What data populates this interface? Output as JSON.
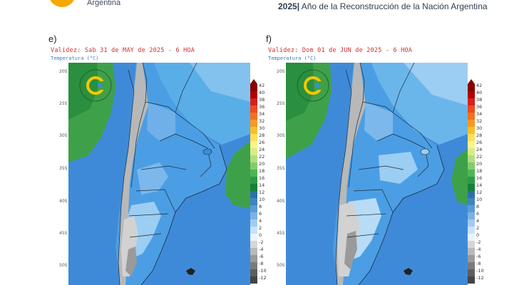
{
  "header": {
    "org_name": "Argentina",
    "year_bold": "2025|",
    "year_title": " Año de la Reconstrucción de la Nación Argentina"
  },
  "panels": [
    {
      "letter": "e)",
      "validity": "Validez: Sab 31 de MAY de 2025 - 6 HOA",
      "variable": "Temperatura (°C)"
    },
    {
      "letter": "f)",
      "validity": "Validez: Dom 01 de JUN de 2025 - 6 HOA",
      "variable": "Temperatura (°C)"
    }
  ],
  "latitude_labels": [
    "20S",
    "25S",
    "30S",
    "35S",
    "40S",
    "45S",
    "50S"
  ],
  "colorbar": {
    "labels": [
      "42",
      "40",
      "38",
      "36",
      "34",
      "32",
      "30",
      "28",
      "26",
      "24",
      "22",
      "20",
      "18",
      "16",
      "14",
      "12",
      "10",
      "8",
      "6",
      "4",
      "2",
      "0",
      "-2",
      "-4",
      "-6",
      "-8",
      "-10",
      "-12"
    ],
    "colors": [
      "#8a0000",
      "#b00000",
      "#d81f1f",
      "#ef4a1e",
      "#f4701c",
      "#f79a22",
      "#fabe2c",
      "#fde15a",
      "#f8f48a",
      "#d8ec8a",
      "#b2de7e",
      "#82cc6a",
      "#4fb555",
      "#2a9c44",
      "#148236",
      "#2f6fa8",
      "#3f84c4",
      "#5a9ad6",
      "#7cb2e4",
      "#a3cbf0",
      "#c9e2f8",
      "#e8f4fd",
      "#d6d6d6",
      "#b9b9b9",
      "#9a9a9a",
      "#7b7b7b",
      "#5e5e5e",
      "#444444"
    ]
  },
  "colors": {
    "land_blue": "#4b9ee4",
    "ocean_blue": "#3f8ad8",
    "pale_blue": "#9ccdf2",
    "andes_gray": "#b8b8b8",
    "green": "#3fa04a",
    "logo_orange": "#f5a800"
  },
  "icons": [
    "logo-c-icon",
    "watermark-c-icon"
  ]
}
